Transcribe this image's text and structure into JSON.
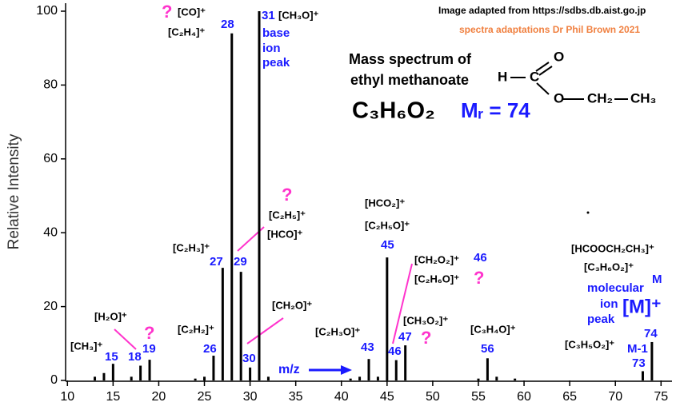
{
  "chart_data": {
    "type": "bar",
    "ylabel": "Relative Intensity",
    "x": [
      13,
      14,
      15,
      17,
      18,
      19,
      24,
      25,
      26,
      27,
      28,
      29,
      30,
      31,
      32,
      41,
      42,
      43,
      44,
      45,
      46,
      47,
      55,
      56,
      57,
      59,
      73,
      74
    ],
    "values": [
      1,
      2,
      4.5,
      1,
      4,
      5.6,
      0.5,
      1,
      6.7,
      30.5,
      94,
      29.4,
      3.5,
      100,
      1,
      0.5,
      1,
      5.8,
      1,
      33.3,
      5.5,
      9.5,
      0.5,
      6,
      1,
      0.5,
      2.5,
      10.4
    ],
    "color": "#000000",
    "xlim": [
      9.8,
      76.2
    ],
    "ylim": [
      0,
      100
    ],
    "xticks": [
      10,
      15,
      20,
      25,
      30,
      35,
      40,
      45,
      50,
      55,
      60,
      65,
      70,
      75
    ],
    "yticks": [
      0,
      20,
      40,
      60,
      80,
      100
    ],
    "annotations": [
      {
        "text": "Image adapted from https://sdbs.db.aist.go.jp",
        "color": "#000000"
      },
      {
        "text": "spectra adaptations Dr Phil Brown 2021",
        "color": "#f08040"
      },
      {
        "text": "Mass spectrum of",
        "color": "#000000"
      },
      {
        "text": "ethyl methanoate",
        "color": "#000000"
      },
      {
        "text": "C₃H₆O₂",
        "color": "#000000"
      },
      {
        "text": "Mᵣ = 74",
        "color": "#1a1aff"
      },
      {
        "text": "H",
        "color": "#000000"
      },
      {
        "text": "C",
        "color": "#000000"
      },
      {
        "text": "O",
        "color": "#000000"
      },
      {
        "text": "O",
        "color": "#000000"
      },
      {
        "text": "CH₂",
        "color": "#000000"
      },
      {
        "text": "CH₃",
        "color": "#000000"
      },
      {
        "text": "?",
        "color": "#ff33cc"
      },
      {
        "text": "[CO]⁺",
        "color": "#000000"
      },
      {
        "text": "[C₂H₄]⁺",
        "color": "#000000"
      },
      {
        "text": "28",
        "color": "#1a1aff"
      },
      {
        "text": "31",
        "color": "#1a1aff"
      },
      {
        "text": "[CH₃O]⁺",
        "color": "#000000"
      },
      {
        "text": "base",
        "color": "#1a1aff"
      },
      {
        "text": "ion",
        "color": "#1a1aff"
      },
      {
        "text": "peak",
        "color": "#1a1aff"
      },
      {
        "text": "?",
        "color": "#ff33cc"
      },
      {
        "text": "[C₂H₅]⁺",
        "color": "#000000"
      },
      {
        "text": "[HCO]⁺",
        "color": "#000000"
      },
      {
        "text": "[C₂H₃]⁺",
        "color": "#000000"
      },
      {
        "text": "27",
        "color": "#1a1aff"
      },
      {
        "text": "29",
        "color": "#1a1aff"
      },
      {
        "text": "[CH₂O]⁺",
        "color": "#000000"
      },
      {
        "text": "[H₂O]⁺",
        "color": "#000000"
      },
      {
        "text": "?",
        "color": "#ff33cc"
      },
      {
        "text": "[C₂H₂]⁺",
        "color": "#000000"
      },
      {
        "text": "[CH₃]⁺",
        "color": "#000000"
      },
      {
        "text": "15",
        "color": "#1a1aff"
      },
      {
        "text": "18",
        "color": "#1a1aff"
      },
      {
        "text": "19",
        "color": "#1a1aff"
      },
      {
        "text": "26",
        "color": "#1a1aff"
      },
      {
        "text": "30",
        "color": "#1a1aff"
      },
      {
        "text": "m/z",
        "color": "#1a1aff"
      },
      {
        "text": "[C₂H₃O]⁺",
        "color": "#000000"
      },
      {
        "text": "43",
        "color": "#1a1aff"
      },
      {
        "text": "[HCO₂]⁺",
        "color": "#000000"
      },
      {
        "text": "[C₂H₅O]⁺",
        "color": "#000000"
      },
      {
        "text": "45",
        "color": "#1a1aff"
      },
      {
        "text": "[CH₂O₂]⁺",
        "color": "#000000"
      },
      {
        "text": "46",
        "color": "#1a1aff"
      },
      {
        "text": "[C₂H₆O]⁺",
        "color": "#000000"
      },
      {
        "text": "?",
        "color": "#ff33cc"
      },
      {
        "text": "[CH₃O₂]⁺",
        "color": "#000000"
      },
      {
        "text": "47",
        "color": "#1a1aff"
      },
      {
        "text": "?",
        "color": "#ff33cc"
      },
      {
        "text": "46",
        "color": "#1a1aff"
      },
      {
        "text": "[C₃H₄O]⁺",
        "color": "#000000"
      },
      {
        "text": "56",
        "color": "#1a1aff"
      },
      {
        "text": "[HCOOCH₂CH₃]⁺",
        "color": "#000000"
      },
      {
        "text": "[C₃H₆O₂]⁺",
        "color": "#000000"
      },
      {
        "text": "M",
        "color": "#1a1aff"
      },
      {
        "text": "molecular",
        "color": "#1a1aff"
      },
      {
        "text": "ion",
        "color": "#1a1aff"
      },
      {
        "text": "peak",
        "color": "#1a1aff"
      },
      {
        "text": "[M]⁺",
        "color": "#1a1aff"
      },
      {
        "text": "74",
        "color": "#1a1aff"
      },
      {
        "text": "[C₃H₅O₂]⁺",
        "color": "#000000"
      },
      {
        "text": "M-1",
        "color": "#1a1aff"
      },
      {
        "text": "73",
        "color": "#1a1aff"
      }
    ]
  }
}
